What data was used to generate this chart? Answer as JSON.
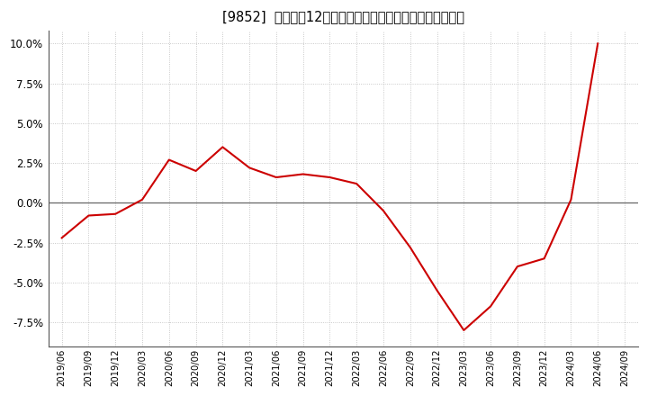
{
  "title": "[9852]  売上高の12か月移動合計の対前年同期増減率の推移",
  "line_color": "#cc0000",
  "background_color": "#ffffff",
  "grid_color": "#bbbbbb",
  "x_labels": [
    "2019/06",
    "2019/09",
    "2019/12",
    "2020/03",
    "2020/06",
    "2020/09",
    "2020/12",
    "2021/03",
    "2021/06",
    "2021/09",
    "2021/12",
    "2022/03",
    "2022/06",
    "2022/09",
    "2022/12",
    "2023/03",
    "2023/06",
    "2023/09",
    "2023/12",
    "2024/03",
    "2024/06",
    "2024/09"
  ],
  "y_values": [
    -0.022,
    -0.008,
    -0.007,
    0.002,
    0.027,
    0.02,
    0.035,
    0.022,
    0.016,
    0.018,
    0.016,
    0.012,
    -0.005,
    -0.028,
    -0.055,
    -0.08,
    -0.065,
    -0.04,
    -0.035,
    0.002,
    0.1,
    null
  ],
  "ylim": [
    -0.09,
    0.108
  ],
  "yticks": [
    -0.075,
    -0.05,
    -0.025,
    0.0,
    0.025,
    0.05,
    0.075,
    0.1
  ],
  "title_fontsize": 10.5,
  "figsize": [
    7.2,
    4.4
  ],
  "dpi": 100
}
